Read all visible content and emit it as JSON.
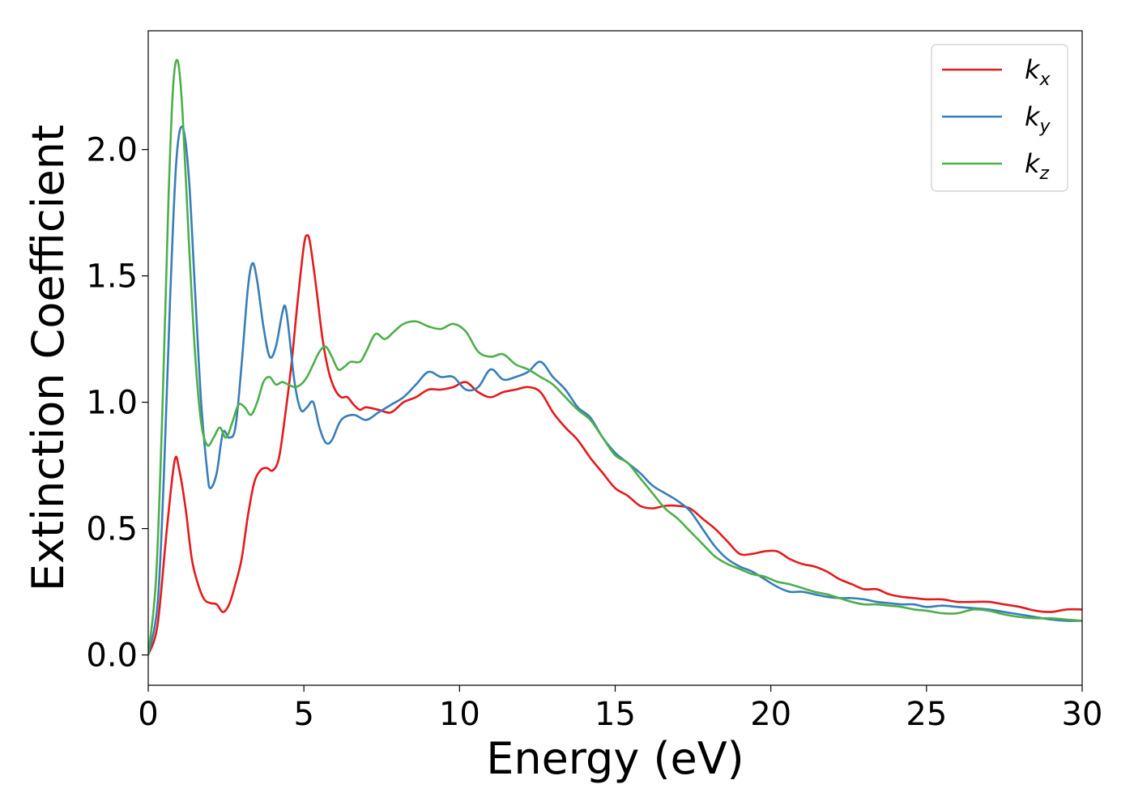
{
  "chart_data": {
    "type": "line",
    "title": "",
    "xlabel": "Energy (eV)",
    "ylabel": "Extinction Coefficient",
    "xlim": [
      0,
      30
    ],
    "ylim": [
      -0.12,
      2.47
    ],
    "xticks": [
      0,
      5,
      10,
      15,
      20,
      25,
      30
    ],
    "yticks": [
      0.0,
      0.5,
      1.0,
      1.5,
      2.0
    ],
    "xtick_labels": [
      "0",
      "5",
      "10",
      "15",
      "20",
      "25",
      "30"
    ],
    "ytick_labels": [
      "0.0",
      "0.5",
      "1.0",
      "1.5",
      "2.0"
    ],
    "grid": false,
    "legend_position": "top-right",
    "series": [
      {
        "name": "k",
        "subscript": "x",
        "color": "#e41a1c",
        "points": [
          [
            0,
            0
          ],
          [
            0.3,
            0.12
          ],
          [
            0.6,
            0.5
          ],
          [
            0.85,
            0.77
          ],
          [
            1.0,
            0.73
          ],
          [
            1.2,
            0.58
          ],
          [
            1.4,
            0.38
          ],
          [
            1.6,
            0.28
          ],
          [
            1.8,
            0.22
          ],
          [
            2.0,
            0.205
          ],
          [
            2.2,
            0.2
          ],
          [
            2.4,
            0.17
          ],
          [
            2.6,
            0.2
          ],
          [
            2.8,
            0.28
          ],
          [
            3.0,
            0.38
          ],
          [
            3.2,
            0.55
          ],
          [
            3.4,
            0.68
          ],
          [
            3.6,
            0.73
          ],
          [
            3.8,
            0.74
          ],
          [
            4.0,
            0.73
          ],
          [
            4.2,
            0.78
          ],
          [
            4.4,
            0.95
          ],
          [
            4.6,
            1.15
          ],
          [
            4.8,
            1.4
          ],
          [
            5.0,
            1.62
          ],
          [
            5.1,
            1.66
          ],
          [
            5.2,
            1.63
          ],
          [
            5.4,
            1.45
          ],
          [
            5.6,
            1.25
          ],
          [
            5.8,
            1.12
          ],
          [
            6.0,
            1.05
          ],
          [
            6.2,
            1.02
          ],
          [
            6.4,
            1.02
          ],
          [
            6.6,
            0.99
          ],
          [
            6.8,
            0.97
          ],
          [
            7.0,
            0.98
          ],
          [
            7.4,
            0.97
          ],
          [
            7.8,
            0.96
          ],
          [
            8.2,
            1.0
          ],
          [
            8.6,
            1.02
          ],
          [
            9.0,
            1.05
          ],
          [
            9.4,
            1.05
          ],
          [
            9.8,
            1.06
          ],
          [
            10.2,
            1.08
          ],
          [
            10.6,
            1.04
          ],
          [
            11.0,
            1.02
          ],
          [
            11.4,
            1.04
          ],
          [
            11.8,
            1.05
          ],
          [
            12.2,
            1.06
          ],
          [
            12.6,
            1.04
          ],
          [
            13.0,
            0.96
          ],
          [
            13.4,
            0.9
          ],
          [
            13.8,
            0.85
          ],
          [
            14.2,
            0.78
          ],
          [
            14.6,
            0.72
          ],
          [
            15.0,
            0.66
          ],
          [
            15.4,
            0.63
          ],
          [
            15.8,
            0.59
          ],
          [
            16.2,
            0.58
          ],
          [
            16.6,
            0.59
          ],
          [
            17.0,
            0.59
          ],
          [
            17.4,
            0.58
          ],
          [
            17.8,
            0.54
          ],
          [
            18.2,
            0.5
          ],
          [
            18.6,
            0.45
          ],
          [
            19.0,
            0.4
          ],
          [
            19.4,
            0.4
          ],
          [
            19.8,
            0.41
          ],
          [
            20.2,
            0.41
          ],
          [
            20.6,
            0.38
          ],
          [
            21.0,
            0.36
          ],
          [
            21.4,
            0.35
          ],
          [
            21.8,
            0.33
          ],
          [
            22.2,
            0.3
          ],
          [
            22.6,
            0.28
          ],
          [
            23.0,
            0.26
          ],
          [
            23.4,
            0.26
          ],
          [
            23.8,
            0.24
          ],
          [
            24.2,
            0.23
          ],
          [
            24.6,
            0.225
          ],
          [
            25.0,
            0.22
          ],
          [
            25.5,
            0.22
          ],
          [
            26.0,
            0.21
          ],
          [
            26.5,
            0.21
          ],
          [
            27.0,
            0.21
          ],
          [
            27.5,
            0.2
          ],
          [
            28.0,
            0.19
          ],
          [
            28.5,
            0.175
          ],
          [
            29.0,
            0.17
          ],
          [
            29.5,
            0.18
          ],
          [
            30.0,
            0.18
          ]
        ]
      },
      {
        "name": "k",
        "subscript": "y",
        "color": "#377eb8",
        "points": [
          [
            0,
            0
          ],
          [
            0.3,
            0.2
          ],
          [
            0.5,
            0.7
          ],
          [
            0.7,
            1.4
          ],
          [
            0.9,
            1.95
          ],
          [
            1.1,
            2.09
          ],
          [
            1.3,
            1.9
          ],
          [
            1.5,
            1.45
          ],
          [
            1.7,
            1.0
          ],
          [
            1.9,
            0.72
          ],
          [
            2.0,
            0.66
          ],
          [
            2.2,
            0.72
          ],
          [
            2.4,
            0.88
          ],
          [
            2.6,
            0.86
          ],
          [
            2.8,
            0.9
          ],
          [
            3.0,
            1.15
          ],
          [
            3.2,
            1.45
          ],
          [
            3.35,
            1.55
          ],
          [
            3.5,
            1.48
          ],
          [
            3.7,
            1.3
          ],
          [
            3.9,
            1.18
          ],
          [
            4.1,
            1.22
          ],
          [
            4.3,
            1.35
          ],
          [
            4.4,
            1.38
          ],
          [
            4.5,
            1.3
          ],
          [
            4.7,
            1.08
          ],
          [
            4.9,
            0.97
          ],
          [
            5.1,
            0.98
          ],
          [
            5.3,
            1.0
          ],
          [
            5.5,
            0.9
          ],
          [
            5.7,
            0.84
          ],
          [
            5.9,
            0.85
          ],
          [
            6.2,
            0.93
          ],
          [
            6.6,
            0.95
          ],
          [
            7.0,
            0.93
          ],
          [
            7.4,
            0.96
          ],
          [
            7.8,
            0.99
          ],
          [
            8.2,
            1.02
          ],
          [
            8.6,
            1.07
          ],
          [
            9.0,
            1.12
          ],
          [
            9.4,
            1.1
          ],
          [
            9.8,
            1.1
          ],
          [
            10.2,
            1.05
          ],
          [
            10.6,
            1.06
          ],
          [
            11.0,
            1.13
          ],
          [
            11.4,
            1.09
          ],
          [
            11.8,
            1.1
          ],
          [
            12.2,
            1.12
          ],
          [
            12.6,
            1.16
          ],
          [
            13.0,
            1.1
          ],
          [
            13.4,
            1.05
          ],
          [
            13.8,
            0.98
          ],
          [
            14.2,
            0.94
          ],
          [
            14.6,
            0.86
          ],
          [
            15.0,
            0.8
          ],
          [
            15.4,
            0.76
          ],
          [
            15.8,
            0.72
          ],
          [
            16.2,
            0.67
          ],
          [
            16.6,
            0.64
          ],
          [
            17.0,
            0.61
          ],
          [
            17.4,
            0.57
          ],
          [
            17.8,
            0.5
          ],
          [
            18.2,
            0.43
          ],
          [
            18.6,
            0.38
          ],
          [
            19.0,
            0.35
          ],
          [
            19.4,
            0.33
          ],
          [
            19.8,
            0.3
          ],
          [
            20.2,
            0.27
          ],
          [
            20.6,
            0.25
          ],
          [
            21.0,
            0.25
          ],
          [
            21.4,
            0.24
          ],
          [
            21.8,
            0.23
          ],
          [
            22.2,
            0.225
          ],
          [
            22.6,
            0.225
          ],
          [
            23.0,
            0.22
          ],
          [
            23.4,
            0.21
          ],
          [
            23.8,
            0.205
          ],
          [
            24.2,
            0.2
          ],
          [
            24.6,
            0.2
          ],
          [
            25.0,
            0.19
          ],
          [
            25.5,
            0.195
          ],
          [
            26.0,
            0.19
          ],
          [
            26.5,
            0.185
          ],
          [
            27.0,
            0.18
          ],
          [
            27.5,
            0.17
          ],
          [
            28.0,
            0.16
          ],
          [
            28.5,
            0.15
          ],
          [
            29.0,
            0.14
          ],
          [
            29.5,
            0.135
          ],
          [
            30.0,
            0.135
          ]
        ]
      },
      {
        "name": "k",
        "subscript": "z",
        "color": "#4daf4a",
        "points": [
          [
            0,
            0
          ],
          [
            0.25,
            0.3
          ],
          [
            0.45,
            0.95
          ],
          [
            0.65,
            1.8
          ],
          [
            0.8,
            2.25
          ],
          [
            0.95,
            2.35
          ],
          [
            1.1,
            2.15
          ],
          [
            1.3,
            1.65
          ],
          [
            1.5,
            1.2
          ],
          [
            1.7,
            0.92
          ],
          [
            1.9,
            0.83
          ],
          [
            2.1,
            0.86
          ],
          [
            2.3,
            0.9
          ],
          [
            2.5,
            0.86
          ],
          [
            2.7,
            0.92
          ],
          [
            2.9,
            0.99
          ],
          [
            3.1,
            0.98
          ],
          [
            3.3,
            0.95
          ],
          [
            3.5,
            1.0
          ],
          [
            3.7,
            1.08
          ],
          [
            3.9,
            1.1
          ],
          [
            4.1,
            1.07
          ],
          [
            4.3,
            1.08
          ],
          [
            4.5,
            1.07
          ],
          [
            4.7,
            1.06
          ],
          [
            4.9,
            1.07
          ],
          [
            5.1,
            1.1
          ],
          [
            5.3,
            1.15
          ],
          [
            5.5,
            1.2
          ],
          [
            5.7,
            1.22
          ],
          [
            5.9,
            1.18
          ],
          [
            6.1,
            1.13
          ],
          [
            6.3,
            1.14
          ],
          [
            6.5,
            1.16
          ],
          [
            6.8,
            1.16
          ],
          [
            7.0,
            1.2
          ],
          [
            7.3,
            1.27
          ],
          [
            7.6,
            1.25
          ],
          [
            7.9,
            1.28
          ],
          [
            8.2,
            1.31
          ],
          [
            8.6,
            1.32
          ],
          [
            9.0,
            1.3
          ],
          [
            9.4,
            1.29
          ],
          [
            9.8,
            1.31
          ],
          [
            10.2,
            1.28
          ],
          [
            10.6,
            1.2
          ],
          [
            11.0,
            1.18
          ],
          [
            11.4,
            1.19
          ],
          [
            11.8,
            1.15
          ],
          [
            12.2,
            1.13
          ],
          [
            12.6,
            1.1
          ],
          [
            13.0,
            1.07
          ],
          [
            13.4,
            1.02
          ],
          [
            13.8,
            0.97
          ],
          [
            14.2,
            0.93
          ],
          [
            14.6,
            0.86
          ],
          [
            15.0,
            0.79
          ],
          [
            15.4,
            0.76
          ],
          [
            15.8,
            0.7
          ],
          [
            16.2,
            0.64
          ],
          [
            16.6,
            0.58
          ],
          [
            17.0,
            0.54
          ],
          [
            17.4,
            0.49
          ],
          [
            17.8,
            0.44
          ],
          [
            18.2,
            0.39
          ],
          [
            18.6,
            0.36
          ],
          [
            19.0,
            0.34
          ],
          [
            19.4,
            0.32
          ],
          [
            19.8,
            0.31
          ],
          [
            20.2,
            0.29
          ],
          [
            20.6,
            0.28
          ],
          [
            21.0,
            0.265
          ],
          [
            21.4,
            0.25
          ],
          [
            21.8,
            0.24
          ],
          [
            22.2,
            0.225
          ],
          [
            22.6,
            0.21
          ],
          [
            23.0,
            0.2
          ],
          [
            23.4,
            0.2
          ],
          [
            23.8,
            0.195
          ],
          [
            24.2,
            0.19
          ],
          [
            24.6,
            0.18
          ],
          [
            25.0,
            0.175
          ],
          [
            25.5,
            0.165
          ],
          [
            26.0,
            0.165
          ],
          [
            26.5,
            0.18
          ],
          [
            27.0,
            0.175
          ],
          [
            27.5,
            0.16
          ],
          [
            28.0,
            0.15
          ],
          [
            28.5,
            0.145
          ],
          [
            29.0,
            0.145
          ],
          [
            29.5,
            0.14
          ],
          [
            30.0,
            0.135
          ]
        ]
      }
    ]
  }
}
